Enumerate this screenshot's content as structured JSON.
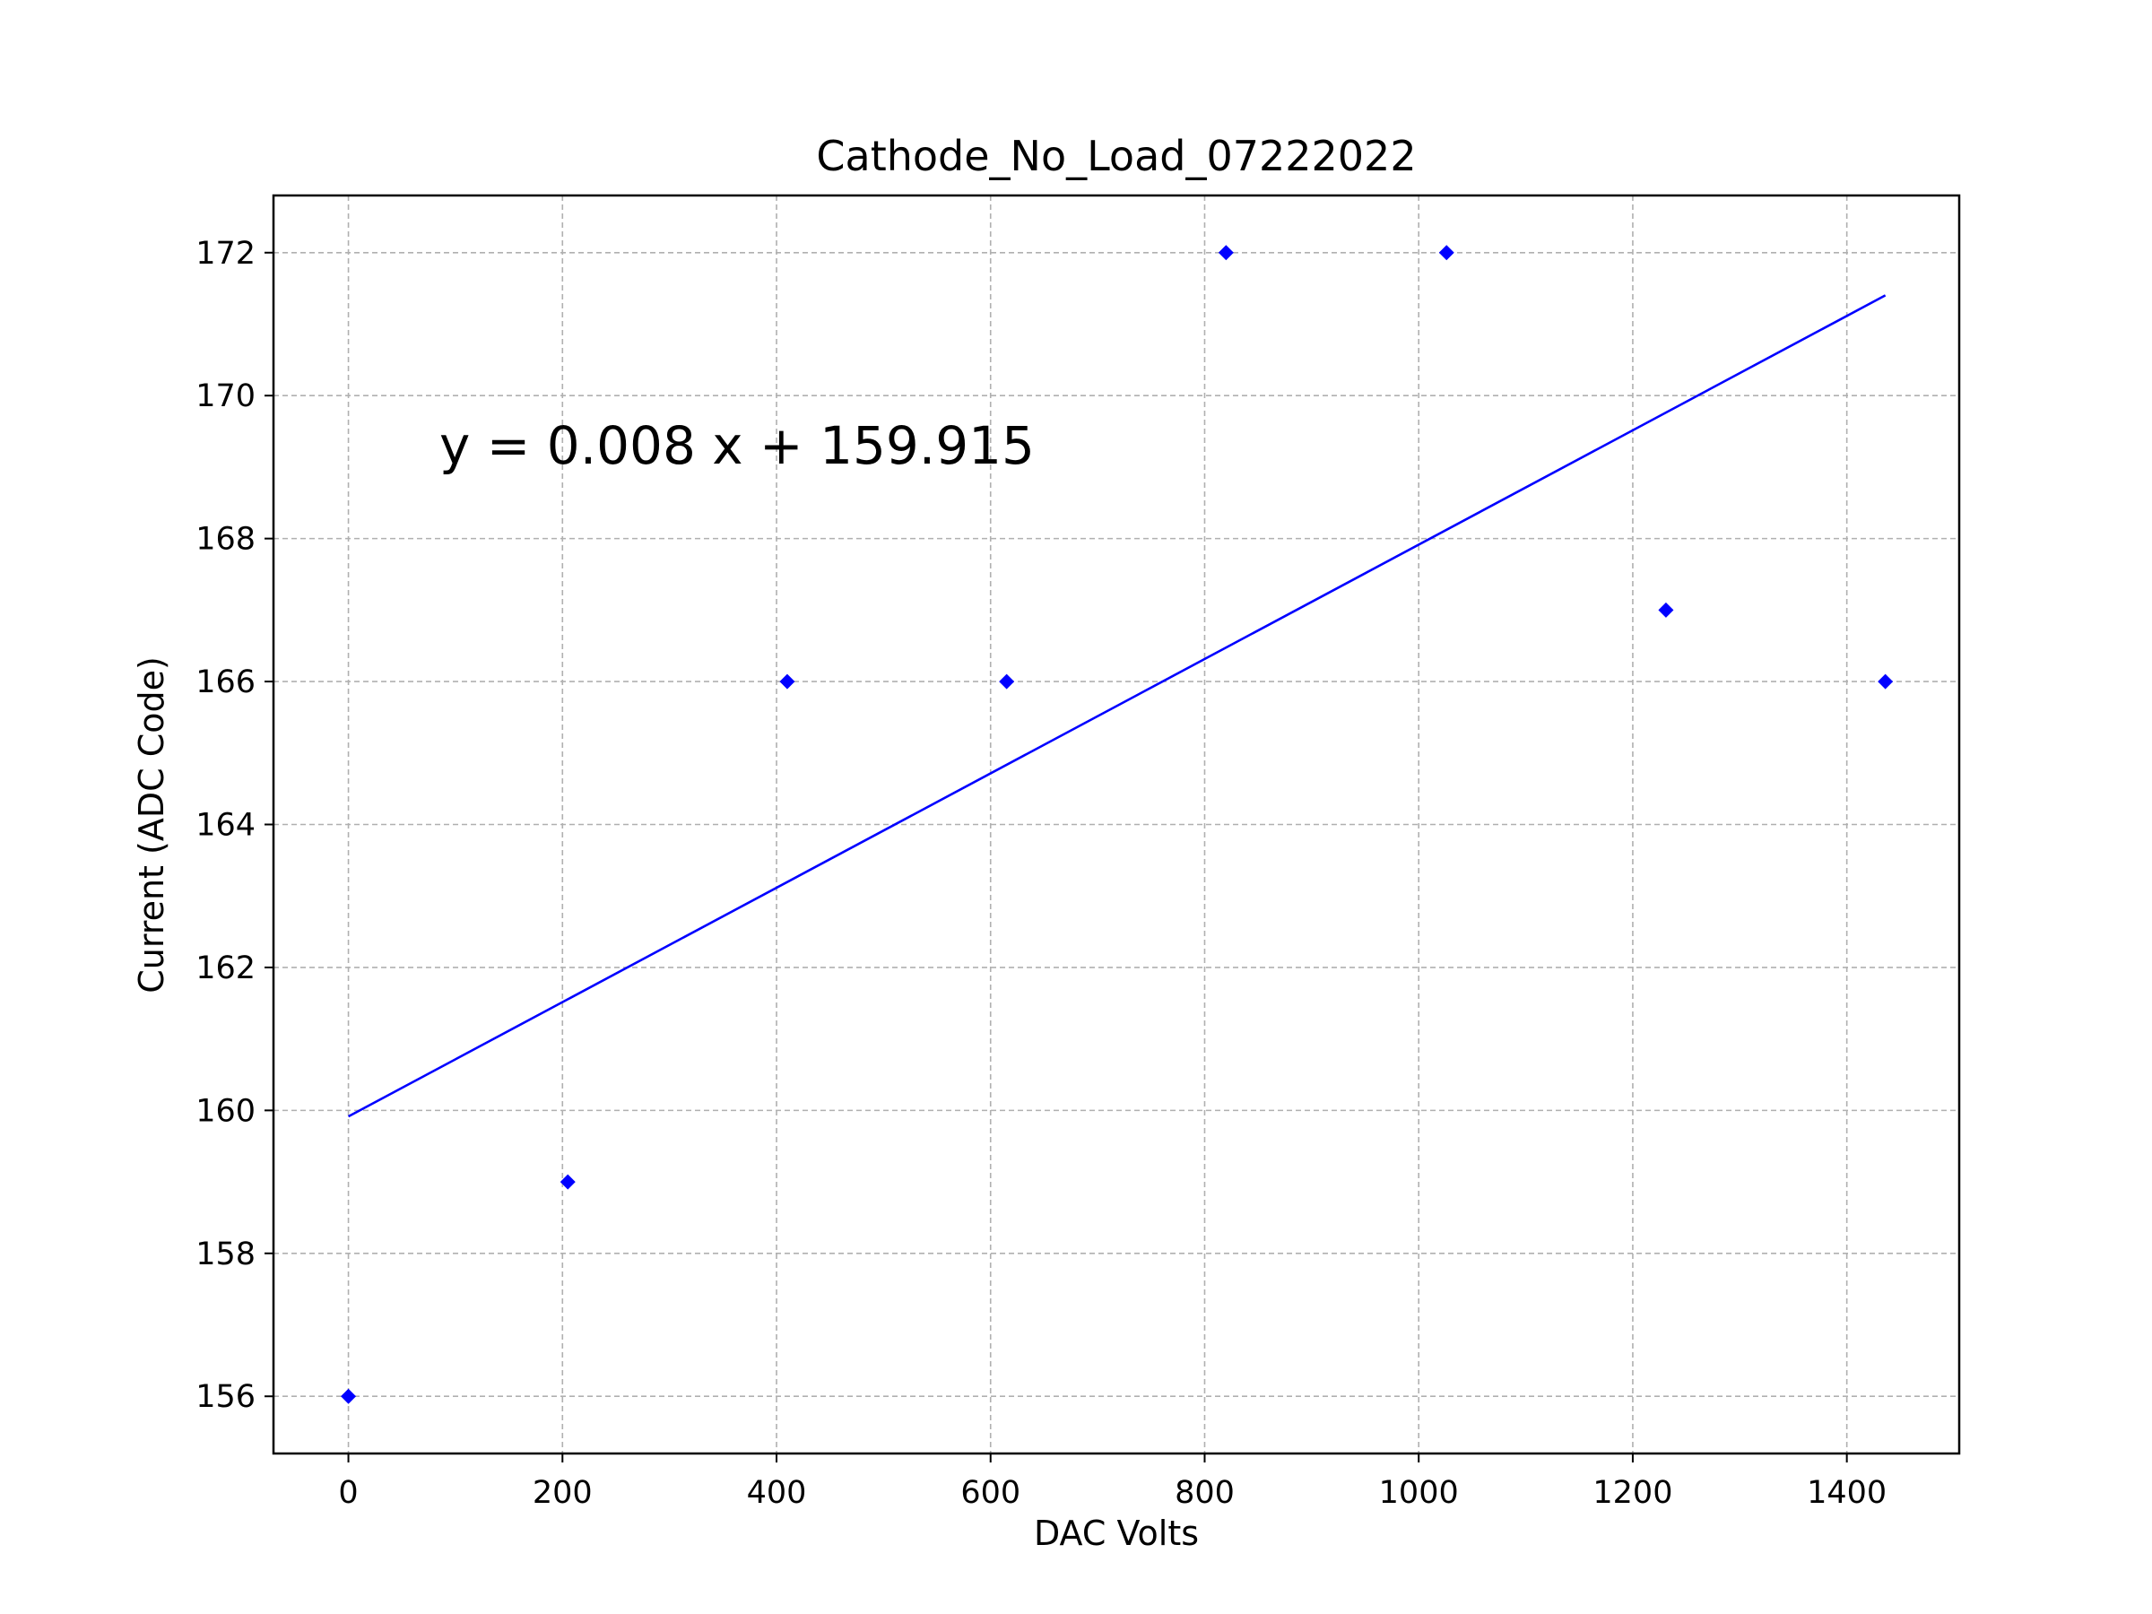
{
  "chart_data": {
    "type": "scatter",
    "title": "Cathode_No_Load_07222022",
    "xlabel": "DAC Volts",
    "ylabel": "Current (ADC Code)",
    "xlim": [
      -70,
      1505
    ],
    "ylim": [
      155.2,
      172.8
    ],
    "xticks": [
      "0",
      "200",
      "400",
      "600",
      "800",
      "1000",
      "1200",
      "1400"
    ],
    "yticks": [
      "156",
      "158",
      "160",
      "162",
      "164",
      "166",
      "168",
      "170",
      "172"
    ],
    "grid": true,
    "series": [
      {
        "kind": "scatter",
        "marker": "diamond",
        "color": "#0000ff",
        "points": [
          {
            "x": 0,
            "y": 156
          },
          {
            "x": 205,
            "y": 159
          },
          {
            "x": 410,
            "y": 166
          },
          {
            "x": 615,
            "y": 166
          },
          {
            "x": 820,
            "y": 172
          },
          {
            "x": 1026,
            "y": 172
          },
          {
            "x": 1231,
            "y": 167
          },
          {
            "x": 1436,
            "y": 166
          }
        ]
      },
      {
        "kind": "line",
        "color": "#0000ff",
        "slope": 0.008,
        "intercept": 159.915,
        "x_range": [
          0,
          1436
        ]
      }
    ],
    "annotation": {
      "text": "y = 0.008 x + 159.915",
      "x": 85,
      "y": 169.3
    }
  }
}
